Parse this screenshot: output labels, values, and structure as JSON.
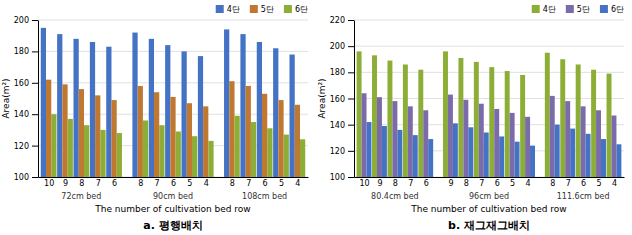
{
  "chart_data": [
    {
      "type": "bar",
      "title": "a.  평행배치",
      "xlabel": "The number of cultivation bed row",
      "ylabel": "Area(m²)",
      "groups": [
        {
          "label": "72cm bed",
          "categories": [
            "10",
            "9",
            "8",
            "7",
            "6"
          ]
        },
        {
          "label": "90cm bed",
          "categories": [
            "8",
            "7",
            "6",
            "5",
            "4"
          ]
        },
        {
          "label": "108cm bed",
          "categories": [
            "8",
            "7",
            "6",
            "5",
            "4"
          ]
        }
      ],
      "series": [
        {
          "name": "4단",
          "color": "#4472C4",
          "values": [
            195,
            191,
            188,
            186,
            183,
            192,
            188,
            184,
            180,
            177,
            194,
            191,
            186,
            182,
            178
          ]
        },
        {
          "name": "5단",
          "color": "#C07830",
          "values": [
            162,
            159,
            156,
            152,
            149,
            158,
            154,
            151,
            147,
            145,
            161,
            158,
            153,
            149,
            146
          ]
        },
        {
          "name": "6단",
          "color": "#8DAE36",
          "values": [
            140,
            137,
            133,
            130,
            128,
            136,
            133,
            129,
            126,
            123,
            139,
            135,
            131,
            127,
            124
          ]
        }
      ],
      "ylim": [
        100,
        200
      ],
      "yticks": [
        100,
        120,
        140,
        160,
        180,
        200
      ],
      "grid": true,
      "legend": "upper right"
    },
    {
      "type": "bar",
      "title": "b.  재그재그배치",
      "xlabel": "The number of cultivation bed row",
      "ylabel": "Area(m²)",
      "groups": [
        {
          "label": "80.4cm bed",
          "categories": [
            "10",
            "9",
            "8",
            "7",
            "6"
          ]
        },
        {
          "label": "96cm bed",
          "categories": [
            "9",
            "8",
            "7",
            "6",
            "5",
            "4"
          ]
        },
        {
          "label": "111.6cm bed",
          "categories": [
            "8",
            "7",
            "6",
            "5",
            "4"
          ]
        }
      ],
      "series": [
        {
          "name": "4단",
          "color": "#8DAE36",
          "values": [
            196,
            193,
            189,
            186,
            182,
            196,
            191,
            188,
            184,
            181,
            178,
            195,
            190,
            186,
            182,
            179
          ]
        },
        {
          "name": "5단",
          "color": "#7B6BAA",
          "values": [
            164,
            161,
            158,
            154,
            151,
            163,
            159,
            156,
            152,
            149,
            146,
            162,
            158,
            154,
            151,
            147
          ]
        },
        {
          "name": "6단",
          "color": "#4472C4",
          "values": [
            142,
            139,
            136,
            132,
            129,
            141,
            138,
            134,
            131,
            127,
            124,
            140,
            137,
            133,
            129,
            125
          ]
        }
      ],
      "ylim": [
        100,
        220
      ],
      "yticks": [
        100,
        120,
        140,
        160,
        180,
        200,
        220
      ],
      "grid": true,
      "legend": "upper right"
    }
  ]
}
